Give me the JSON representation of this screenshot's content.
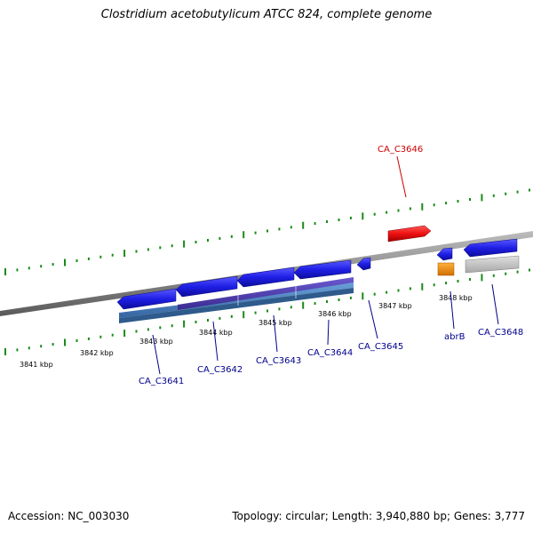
{
  "title": "Clostridium acetobutylicum ATCC 824, complete genome",
  "footer": {
    "accession": "Accession: NC_003030",
    "summary": "Topology: circular; Length: 3,940,880 bp; Genes: 3,777"
  },
  "colors": {
    "forward_gene": "#1f1fe6",
    "highlight_gene": "#ee1111",
    "regulator_gene": "#f08c10",
    "pseudo_gene": "#c4c4c4",
    "tick_major": "#1a8a1a",
    "backbone": "#8a8a8a",
    "label_default": "#00008b",
    "label_highlight": "#cc0000"
  },
  "scale_labels": [
    "3841 kbp",
    "3842 kbp",
    "3843 kbp",
    "3844 kbp",
    "3845 kbp",
    "3846 kbp",
    "3847 kbp",
    "3848 kbp"
  ],
  "genes": [
    {
      "label": "CA_C3641",
      "highlight": false
    },
    {
      "label": "CA_C3642",
      "highlight": false
    },
    {
      "label": "CA_C3643",
      "highlight": false
    },
    {
      "label": "CA_C3644",
      "highlight": false
    },
    {
      "label": "CA_C3645",
      "highlight": false
    },
    {
      "label": "CA_C3646",
      "highlight": true
    },
    {
      "label": "abrB",
      "highlight": false
    },
    {
      "label": "CA_C3648",
      "highlight": false
    }
  ]
}
